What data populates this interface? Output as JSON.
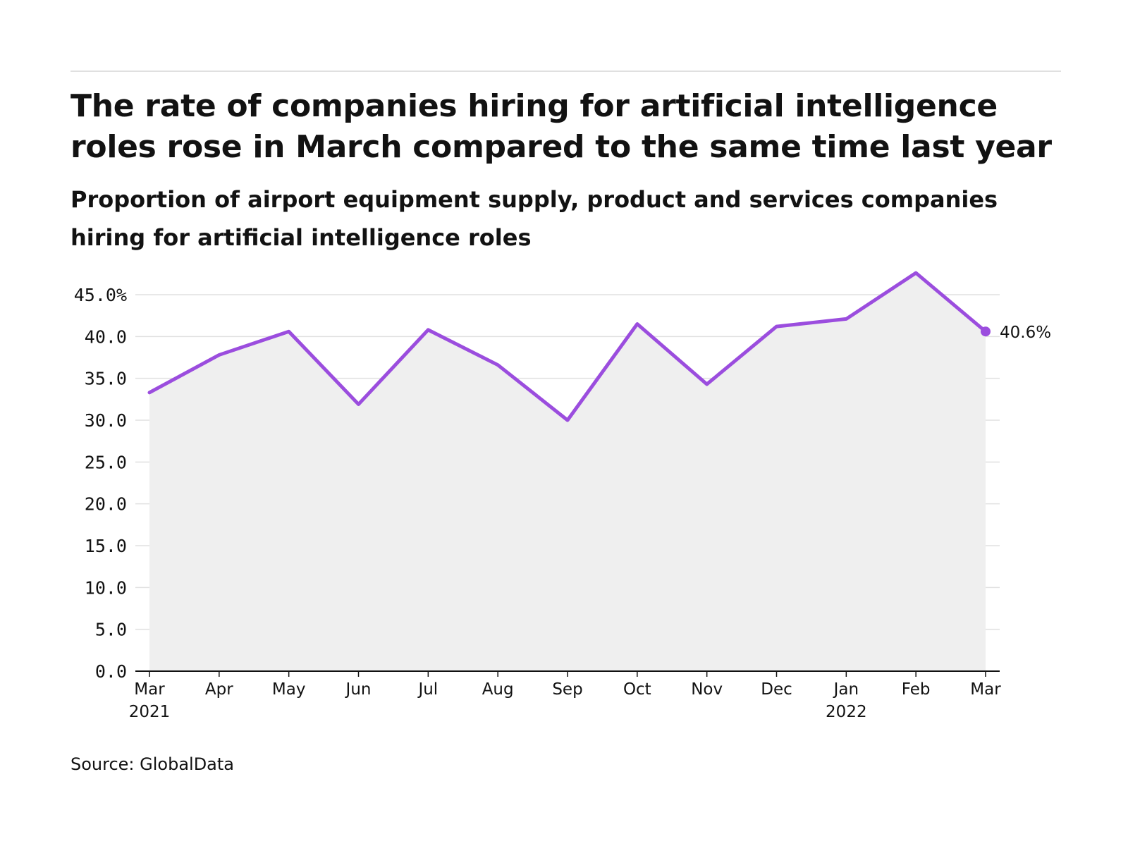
{
  "header": {
    "title": "The rate of companies hiring for artificial intelligence roles rose in March compared to the same time last year",
    "subtitle": "Proportion of airport equipment supply, product and services companies hiring for artificial intelligence roles"
  },
  "footer": {
    "source": "Source: GlobalData"
  },
  "chart_data": {
    "type": "line",
    "title": "The rate of companies hiring for artificial intelligence roles rose in March compared to the same time last year",
    "subtitle": "Proportion of airport equipment supply, product and services companies hiring for artificial intelligence roles",
    "categories": [
      "Mar 2021",
      "Apr",
      "May",
      "Jun",
      "Jul",
      "Aug",
      "Sep",
      "Oct",
      "Nov",
      "Dec",
      "Jan 2022",
      "Feb",
      "Mar"
    ],
    "x_tick_labels": [
      [
        "Mar",
        "2021"
      ],
      [
        "Apr"
      ],
      [
        "May"
      ],
      [
        "Jun"
      ],
      [
        "Jul"
      ],
      [
        "Aug"
      ],
      [
        "Sep"
      ],
      [
        "Oct"
      ],
      [
        "Nov"
      ],
      [
        "Dec"
      ],
      [
        "Jan",
        "2022"
      ],
      [
        "Feb"
      ],
      [
        "Mar"
      ]
    ],
    "series": [
      {
        "values": [
          33.3,
          37.8,
          40.6,
          31.9,
          40.8,
          36.6,
          30.0,
          41.5,
          34.3,
          41.2,
          42.1,
          47.6,
          40.6
        ]
      }
    ],
    "y_ticks": [
      0,
      5,
      10,
      15,
      20,
      25,
      30,
      35,
      40,
      45
    ],
    "y_tick_labels": [
      "0.0",
      "5.0",
      "10.0",
      "15.0",
      "20.0",
      "25.0",
      "30.0",
      "35.0",
      "40.0",
      "45.0%"
    ],
    "ylim": [
      0,
      45
    ],
    "xlabel": "",
    "ylabel": "",
    "end_label": "40.6%",
    "grid": true,
    "area_fill": true,
    "colors": {
      "line": "#9b4dde",
      "area": "#efefef",
      "grid": "#e0e0e0",
      "axis": "#121212",
      "text": "#121212"
    }
  }
}
